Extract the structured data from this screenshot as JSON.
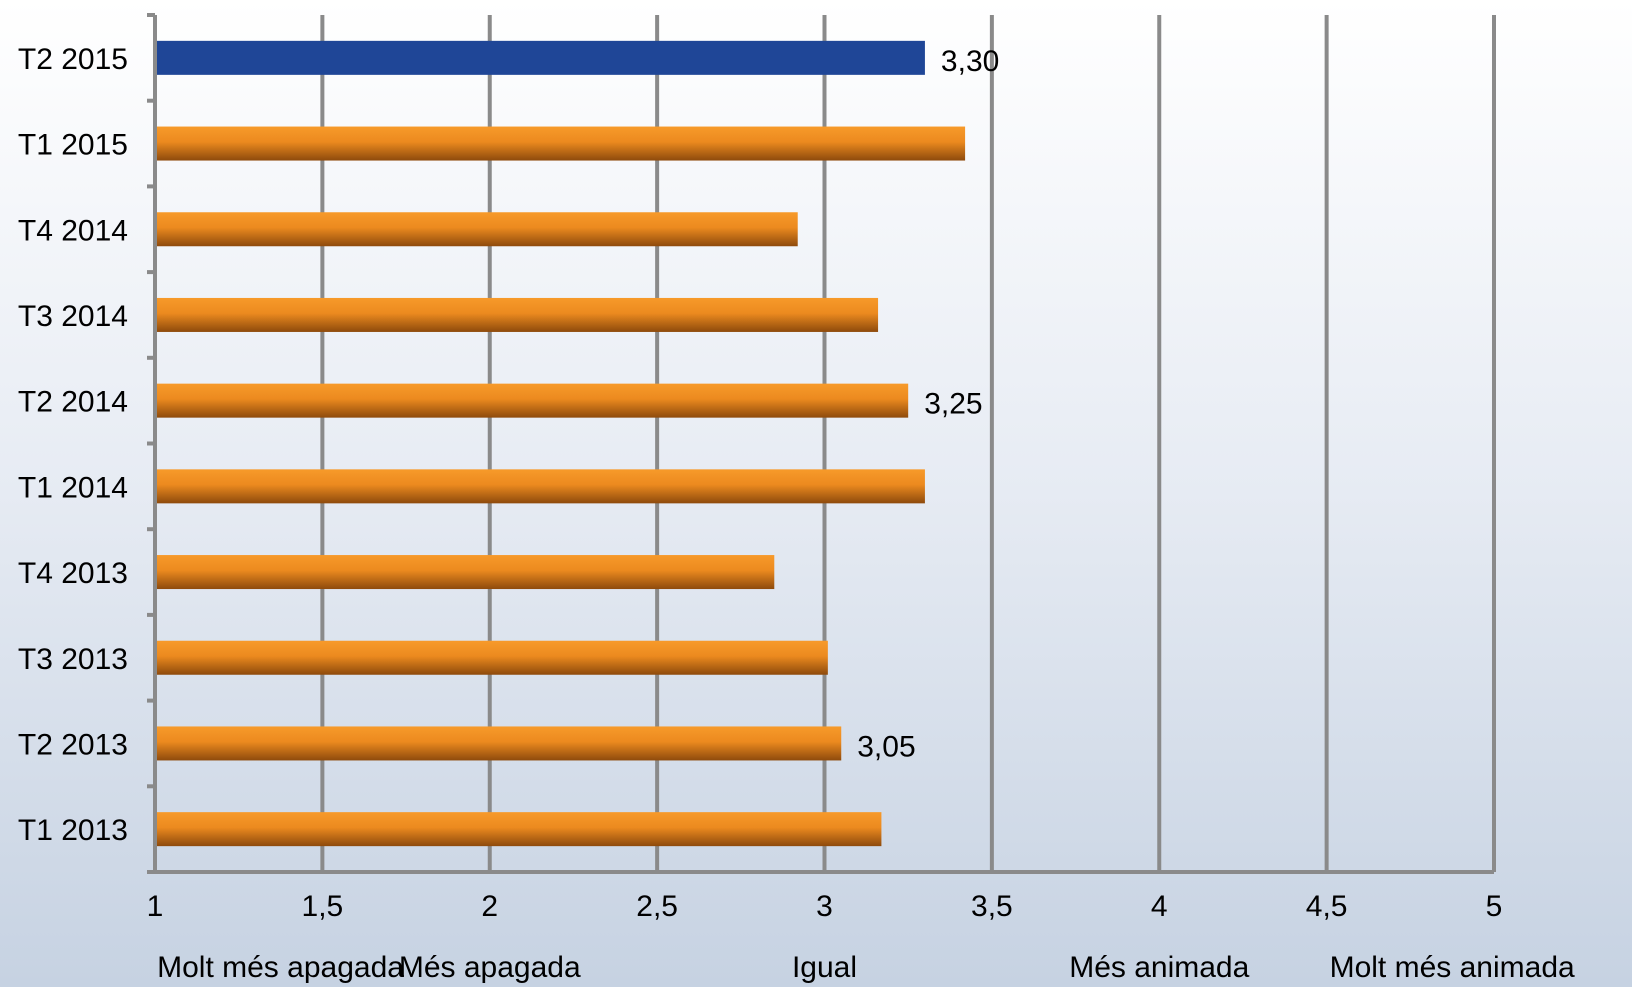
{
  "chart_data": {
    "type": "bar",
    "orientation": "horizontal",
    "categories": [
      "T2 2015",
      "T1 2015",
      "T4 2014",
      "T3 2014",
      "T2 2014",
      "T1 2014",
      "T4 2013",
      "T3 2013",
      "T2 2013",
      "T1 2013"
    ],
    "values": [
      3.3,
      3.42,
      2.92,
      3.16,
      3.25,
      3.3,
      2.85,
      3.01,
      3.05,
      3.17
    ],
    "data_labels": [
      "3,30",
      "",
      "",
      "",
      "3,25",
      "",
      "",
      "",
      "3,05",
      ""
    ],
    "highlight_index": 0,
    "xlim": [
      1,
      5
    ],
    "x_ticks": [
      1,
      1.5,
      2,
      2.5,
      3,
      3.5,
      4,
      4.5,
      5
    ],
    "x_tick_labels": [
      "1",
      "1,5",
      "2",
      "2,5",
      "3",
      "3,5",
      "4",
      "4,5",
      "5"
    ],
    "x_descriptors": [
      {
        "at": 1.375,
        "text": "Molt més apagada"
      },
      {
        "at": 2.0,
        "text": "Més apagada"
      },
      {
        "at": 3.0,
        "text": "Igual"
      },
      {
        "at": 4.0,
        "text": "Més animada"
      },
      {
        "at": 4.875,
        "text": "Molt més animada"
      }
    ],
    "grid": true,
    "colors": {
      "highlight": "#1f4697",
      "bar_top": "#f79a2a",
      "bar_bottom": "#8e4a0c",
      "grid": "#8a8a8a"
    }
  }
}
